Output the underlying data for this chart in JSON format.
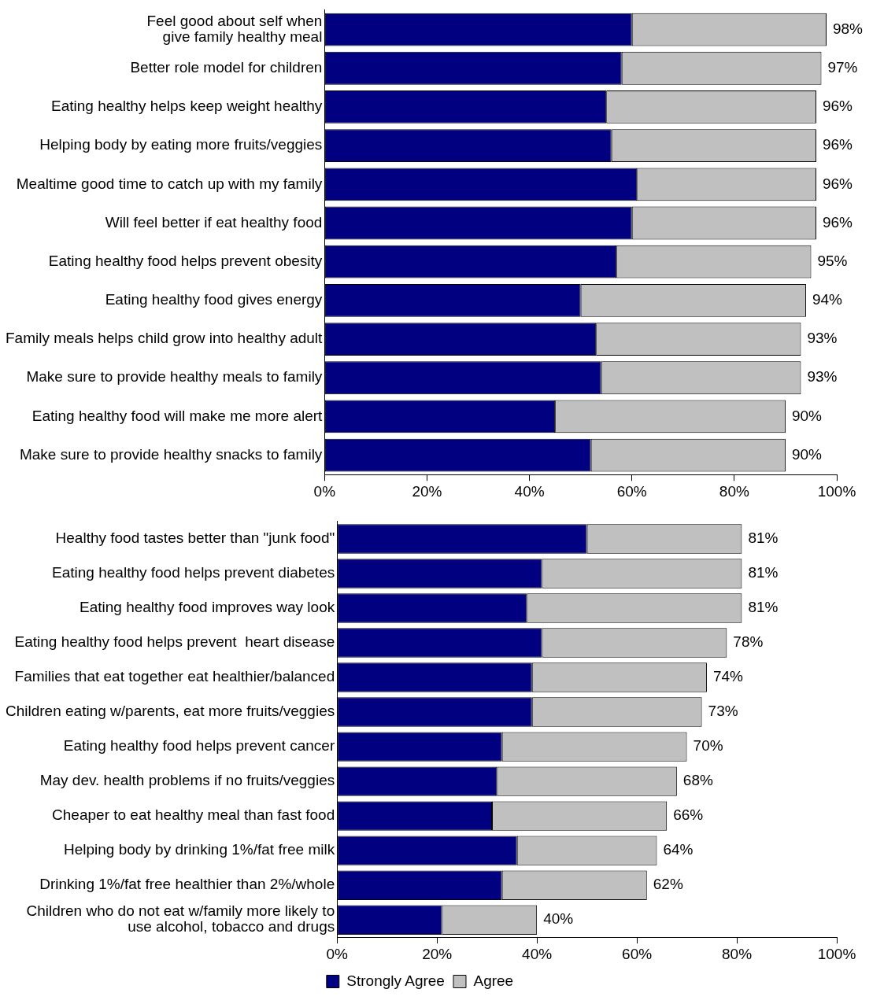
{
  "chart_data": [
    {
      "type": "bar",
      "orientation": "horizontal",
      "stacked": true,
      "grid": false,
      "legend": false,
      "categories": [
        "Feel good about self when\ngive family healthy meal",
        "Better role model for children",
        "Eating healthy helps keep weight healthy",
        "Helping body by eating more fruits/veggies",
        "Mealtime good time to catch up with my family",
        "Will feel better if eat healthy food",
        "Eating healthy food helps prevent obesity",
        "Eating healthy food gives energy",
        "Family meals helps child grow into healthy adult",
        "Make sure to provide healthy meals to family",
        "Eating healthy food will make me more alert",
        "Make sure to provide healthy snacks to family"
      ],
      "series": [
        {
          "color": "#000080",
          "values": [
            60,
            58,
            55,
            56,
            61,
            60,
            57,
            50,
            53,
            54,
            45,
            52
          ]
        },
        {
          "color": "#c0c0c0",
          "values": [
            38,
            39,
            41,
            40,
            35,
            36,
            38,
            44,
            40,
            39,
            45,
            38
          ]
        }
      ],
      "totals": [
        "98%",
        "97%",
        "96%",
        "96%",
        "96%",
        "96%",
        "95%",
        "94%",
        "93%",
        "93%",
        "90%",
        "90%"
      ],
      "xlim": [
        0,
        100
      ],
      "xticks": [
        {
          "value": 0,
          "label": "0%"
        },
        {
          "value": 20,
          "label": "20%"
        },
        {
          "value": 40,
          "label": "40%"
        },
        {
          "value": 60,
          "label": "60%"
        },
        {
          "value": 80,
          "label": "80%"
        },
        {
          "value": 100,
          "label": "100%"
        }
      ]
    },
    {
      "type": "bar",
      "orientation": "horizontal",
      "stacked": true,
      "grid": false,
      "legend": "bottom",
      "categories": [
        "Healthy food tastes better than \"junk food\"",
        "Eating healthy food helps prevent diabetes",
        "Eating healthy food improves way look",
        "Eating healthy food helps prevent  heart disease",
        "Families that eat together eat healthier/balanced",
        "Children eating w/parents, eat more fruits/veggies",
        "Eating healthy food helps prevent cancer",
        "May dev. health problems if no fruits/veggies",
        "Cheaper to eat healthy meal than fast food",
        "Helping body by drinking 1%/fat free milk",
        "Drinking 1%/fat free healthier than 2%/whole",
        "Children who do not eat w/family more likely to\nuse alcohol, tobacco and drugs"
      ],
      "series": [
        {
          "name": "Strongly Agree",
          "color": "#000080",
          "values": [
            50,
            41,
            38,
            41,
            39,
            39,
            33,
            32,
            31,
            36,
            33,
            21
          ]
        },
        {
          "name": "Agree",
          "color": "#c0c0c0",
          "values": [
            31,
            40,
            43,
            37,
            35,
            34,
            37,
            36,
            35,
            28,
            29,
            19
          ]
        }
      ],
      "totals": [
        "81%",
        "81%",
        "81%",
        "78%",
        "74%",
        "73%",
        "70%",
        "68%",
        "66%",
        "64%",
        "62%",
        "40%"
      ],
      "xlim": [
        0,
        100
      ],
      "xticks": [
        {
          "value": 0,
          "label": "0%"
        },
        {
          "value": 20,
          "label": "20%"
        },
        {
          "value": 40,
          "label": "40%"
        },
        {
          "value": 60,
          "label": "60%"
        },
        {
          "value": 80,
          "label": "80%"
        },
        {
          "value": 100,
          "label": "100%"
        }
      ]
    }
  ]
}
